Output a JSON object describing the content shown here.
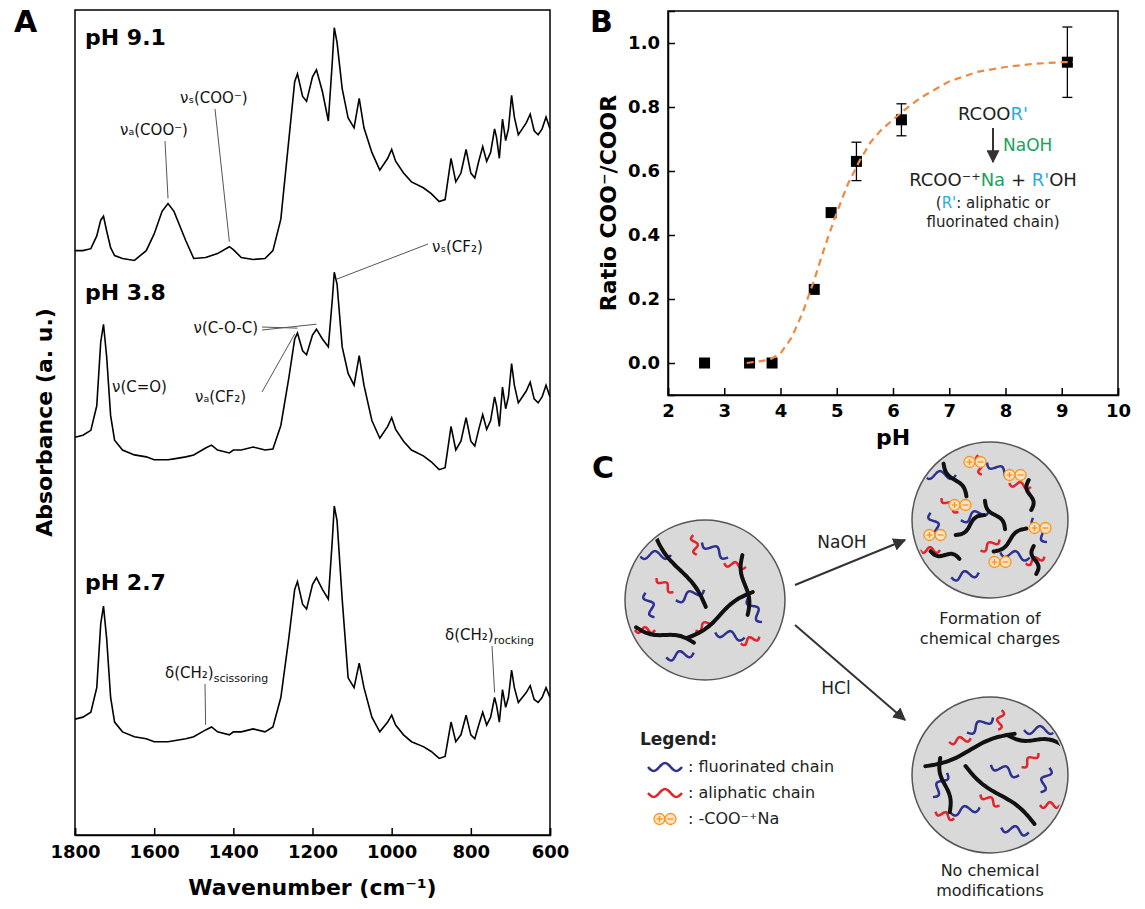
{
  "chart_data": [
    {
      "type": "line",
      "label": "A",
      "x_label": "Wavenumber (cm⁻¹)",
      "y_label": "Absorbance (a. u.)",
      "x": [
        1800,
        1780,
        1760,
        1745,
        1735,
        1728,
        1720,
        1710,
        1700,
        1680,
        1650,
        1620,
        1600,
        1580,
        1565,
        1550,
        1520,
        1500,
        1470,
        1455,
        1440,
        1410,
        1400,
        1380,
        1350,
        1320,
        1300,
        1280,
        1260,
        1245,
        1238,
        1225,
        1215,
        1200,
        1190,
        1175,
        1160,
        1150,
        1145,
        1138,
        1125,
        1110,
        1095,
        1082,
        1070,
        1050,
        1030,
        1010,
        1000,
        990,
        970,
        950,
        920,
        900,
        880,
        865,
        850,
        838,
        825,
        812,
        800,
        790,
        780,
        770,
        760,
        750,
        740,
        735,
        728,
        720,
        712,
        705,
        697,
        690,
        680,
        670,
        660,
        650,
        640,
        630,
        620,
        610,
        600
      ],
      "series": [
        {
          "name": "pH 9.1",
          "color": "#000000",
          "values": [
            5.95,
            5.95,
            5.97,
            6.1,
            6.26,
            6.3,
            6.15,
            5.98,
            5.9,
            5.87,
            5.85,
            5.95,
            6.12,
            6.35,
            6.43,
            6.35,
            6.05,
            5.87,
            5.88,
            5.9,
            5.92,
            5.99,
            5.96,
            5.88,
            5.86,
            5.87,
            5.95,
            6.27,
            7.07,
            7.67,
            7.75,
            7.52,
            7.47,
            7.72,
            7.79,
            7.57,
            7.27,
            7.87,
            8.22,
            8.07,
            7.6,
            7.3,
            7.2,
            7.5,
            7.2,
            6.95,
            6.77,
            6.89,
            6.98,
            6.86,
            6.74,
            6.65,
            6.59,
            6.53,
            6.45,
            6.47,
            6.89,
            6.65,
            6.74,
            6.98,
            6.74,
            6.69,
            6.86,
            7.01,
            6.86,
            6.95,
            7.19,
            7.1,
            6.89,
            7.29,
            7.07,
            7.19,
            7.53,
            7.31,
            7.13,
            7.19,
            7.25,
            7.34,
            7.17,
            7.13,
            7.19,
            7.31,
            7.19
          ]
        },
        {
          "name": "pH 3.8",
          "color": "#000000",
          "values": [
            4.05,
            4.07,
            4.12,
            4.37,
            5.02,
            5.2,
            4.87,
            4.27,
            4.02,
            3.92,
            3.87,
            3.85,
            3.82,
            3.82,
            3.82,
            3.83,
            3.85,
            3.87,
            3.94,
            3.97,
            3.92,
            3.89,
            3.92,
            3.92,
            3.95,
            3.92,
            3.93,
            4.17,
            4.65,
            5.05,
            5.11,
            4.93,
            4.89,
            5.09,
            5.15,
            5.05,
            4.97,
            5.45,
            5.73,
            5.61,
            4.97,
            4.7,
            4.58,
            4.88,
            4.58,
            4.22,
            4.04,
            4.16,
            4.25,
            4.13,
            4.01,
            3.92,
            3.86,
            3.8,
            3.72,
            3.74,
            4.16,
            3.92,
            4.01,
            4.25,
            4.01,
            3.96,
            4.13,
            4.28,
            4.13,
            4.22,
            4.46,
            4.37,
            4.16,
            4.56,
            4.34,
            4.46,
            4.8,
            4.58,
            4.4,
            4.46,
            4.52,
            4.61,
            4.44,
            4.4,
            4.46,
            4.58,
            4.46
          ]
        },
        {
          "name": "pH 2.7",
          "color": "#000000",
          "values": [
            1.18,
            1.2,
            1.25,
            1.5,
            2.15,
            2.33,
            2.0,
            1.4,
            1.15,
            1.05,
            1.0,
            0.98,
            0.95,
            0.95,
            0.95,
            0.96,
            0.98,
            1.0,
            1.07,
            1.1,
            1.05,
            1.02,
            1.05,
            1.05,
            1.08,
            1.05,
            1.1,
            1.4,
            2.0,
            2.5,
            2.58,
            2.35,
            2.3,
            2.55,
            2.62,
            2.5,
            2.4,
            3.0,
            3.35,
            3.2,
            2.4,
            1.6,
            1.5,
            1.75,
            1.5,
            1.2,
            1.05,
            1.15,
            1.22,
            1.12,
            1.02,
            0.95,
            0.9,
            0.85,
            0.78,
            0.8,
            1.15,
            0.95,
            1.02,
            1.22,
            1.02,
            0.98,
            1.12,
            1.25,
            1.12,
            1.2,
            1.4,
            1.32,
            1.15,
            1.48,
            1.3,
            1.4,
            1.68,
            1.5,
            1.35,
            1.4,
            1.45,
            1.52,
            1.38,
            1.35,
            1.4,
            1.5,
            1.4
          ]
        }
      ],
      "xlim": [
        1800,
        600
      ],
      "xticks": [
        1800,
        1600,
        1400,
        1200,
        1000,
        800,
        600
      ],
      "ylim": [
        0,
        8.4
      ],
      "tick_labels": "x",
      "annotations": [
        {
          "text": "νₐ(COO⁻)"
        },
        {
          "text": "νₛ(COO⁻)"
        },
        {
          "text": "ν(C=O)"
        },
        {
          "text": "ν(C-O-C)"
        },
        {
          "text": "νₐ(CF₂)"
        },
        {
          "text": "νₛ(CF₂)"
        },
        {
          "text": "δ(CH₂)scissoring"
        },
        {
          "text": "δ(CH₂)rocking"
        }
      ]
    },
    {
      "type": "scatter",
      "label": "B",
      "x_label": "pH",
      "y_label": "Ratio COO⁻/COOR",
      "series": [
        {
          "type": "scatter",
          "color": "#000000",
          "marker": "square",
          "x": [
            2.65,
            3.45,
            3.85,
            4.6,
            4.9,
            5.35,
            6.15,
            9.1
          ],
          "values": [
            0,
            0,
            0,
            0.23,
            0.47,
            0.63,
            0.76,
            0.94
          ],
          "errors": [
            null,
            null,
            null,
            null,
            null,
            0.06,
            0.05,
            0.11
          ]
        },
        {
          "type": "line",
          "color": "#f0883e",
          "line_style": "dashed",
          "x": [
            3.4,
            3.6,
            3.8,
            4.0,
            4.2,
            4.4,
            4.6,
            4.8,
            5.0,
            5.2,
            5.4,
            5.6,
            5.8,
            6.0,
            6.2,
            6.5,
            7.0,
            7.5,
            8.0,
            8.5,
            9.0,
            9.2
          ],
          "values": [
            0,
            0.005,
            0.01,
            0.03,
            0.08,
            0.16,
            0.26,
            0.37,
            0.47,
            0.56,
            0.63,
            0.69,
            0.73,
            0.76,
            0.79,
            0.83,
            0.88,
            0.91,
            0.925,
            0.935,
            0.94,
            0.94
          ]
        }
      ],
      "xlim": [
        2,
        10
      ],
      "xticks": [
        2,
        3,
        4,
        5,
        6,
        7,
        8,
        9,
        10
      ],
      "ylim": [
        -0.1,
        1.1
      ],
      "yticks": [
        {
          "value": 0,
          "label": "0.0"
        },
        {
          "value": 0.2,
          "label": "0.2"
        },
        {
          "value": 0.4,
          "label": "0.4"
        },
        {
          "value": 0.6,
          "label": "0.6"
        },
        {
          "value": 0.8,
          "label": "0.8"
        },
        {
          "value": 1,
          "label": "1.0"
        }
      ],
      "reaction": {
        "reactant": [
          {
            "text": "RCOO"
          },
          {
            "text": "R'",
            "color": "#29abe2"
          }
        ],
        "reagent": [
          {
            "text": "NaOH",
            "color": "#1aa260"
          }
        ],
        "product": [
          {
            "text": "RCOO⁻⁺"
          },
          {
            "text": "Na",
            "color": "#1aa260"
          },
          {
            "text": " + "
          },
          {
            "text": "R'",
            "color": "#29abe2"
          },
          {
            "text": "OH"
          }
        ],
        "note": [
          [
            {
              "text": "("
            },
            {
              "text": "R'",
              "color": "#29abe2"
            },
            {
              "text": ": aliphatic or"
            }
          ],
          [
            {
              "text": "fluorinated chain)"
            }
          ]
        ]
      }
    }
  ],
  "diagram": {
    "label": "C",
    "reactions": [
      {
        "reagent": "NaOH",
        "caption": [
          "Formation of",
          "chemical charges"
        ]
      },
      {
        "reagent": "HCl",
        "caption": [
          "No chemical",
          "modifications"
        ]
      }
    ],
    "legend": {
      "title": "Legend:",
      "items": [
        {
          "label": ": fluorinated chain",
          "color": "#2e3192",
          "marker": "line"
        },
        {
          "label": ": aliphatic chain",
          "color": "#e0262b",
          "marker": "line"
        },
        {
          "label": ": -COO⁻⁺Na",
          "color": "#f7941d",
          "marker": "charge"
        }
      ]
    }
  }
}
